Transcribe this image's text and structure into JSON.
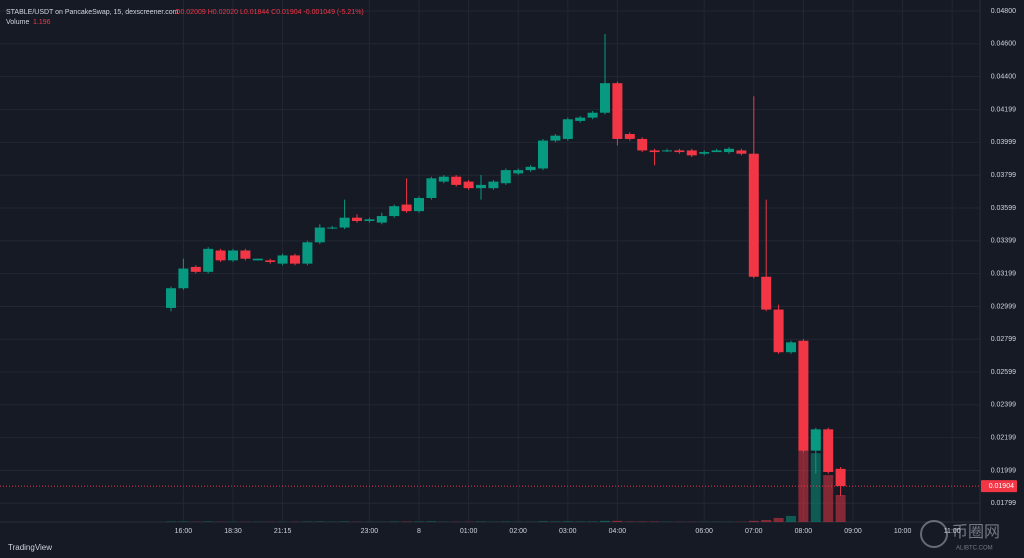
{
  "chart_data": {
    "type": "candlestick",
    "title": "STABLE/USDT on PancakeSwap, 15, dexscreener.com",
    "ohlc_text": "O0.02009 H0.02020 L0.01844 C0.01904 -0.001049 (-5.21%)",
    "volume_title": "Volume",
    "volume_text": "1.196",
    "up_color": "#089981",
    "down_color": "#f23645",
    "grid": true,
    "ylim": [
      0.01685,
      0.04867
    ],
    "yticks": [
      {
        "value": 0.048,
        "label": "0.04800"
      },
      {
        "value": 0.046,
        "label": "0.04600"
      },
      {
        "value": 0.044,
        "label": "0.04400"
      },
      0.04199,
      0.03999,
      0.03799,
      0.03599,
      0.03399,
      0.03199,
      0.02999,
      0.02799,
      0.02599,
      0.02399,
      0.02199,
      0.01999,
      0.01799
    ],
    "last_price": {
      "value": 0.01904,
      "label": "0.01904"
    },
    "categories": [
      null,
      "16:00",
      null,
      null,
      null,
      "18:30",
      null,
      null,
      null,
      "21:15",
      null,
      null,
      null,
      null,
      null,
      null,
      "23:00",
      null,
      null,
      null,
      "8",
      null,
      null,
      null,
      "01:00",
      null,
      null,
      null,
      "02:00",
      null,
      null,
      null,
      "03:00",
      null,
      null,
      null,
      "04:00",
      null,
      null,
      null,
      null,
      null,
      null,
      "06:00",
      null,
      null,
      null,
      "07:00",
      null,
      null,
      null,
      "08:00",
      null,
      null,
      null,
      "09:00",
      null,
      null,
      null,
      "10:00",
      null,
      null,
      null,
      "11:00"
    ],
    "open": [
      0.0299,
      0.0311,
      0.0324,
      0.0321,
      0.0334,
      0.0328,
      0.0334,
      0.0328,
      0.0328,
      0.0326,
      0.0331,
      0.0326,
      0.0339,
      0.0348,
      0.0348,
      0.0354,
      0.0352,
      0.0351,
      0.0355,
      0.0362,
      0.0358,
      0.0366,
      0.0376,
      0.0379,
      0.0376,
      0.0372,
      0.0372,
      0.0375,
      0.0381,
      0.0383,
      0.0384,
      0.0401,
      0.0402,
      0.0413,
      0.0415,
      0.0418,
      0.0436,
      0.0405,
      0.0402,
      0.0395,
      0.0395,
      0.0395,
      0.0395,
      0.0393,
      0.0394,
      0.0394,
      0.0395,
      0.0393,
      0.0318,
      0.0298,
      0.0272,
      0.0279,
      0.0212,
      0.0225,
      0.02009,
      null,
      null,
      null,
      null,
      null,
      null,
      null,
      null,
      null
    ],
    "high": [
      0.0312,
      0.0329,
      0.0325,
      0.0336,
      0.0335,
      0.0335,
      0.0335,
      0.0329,
      0.0329,
      0.0332,
      0.0332,
      0.034,
      0.035,
      0.0349,
      0.0365,
      0.0356,
      0.0354,
      0.0357,
      0.0362,
      0.0378,
      0.0367,
      0.0379,
      0.038,
      0.038,
      0.0377,
      0.038,
      0.0377,
      0.0384,
      0.0384,
      0.0386,
      0.0402,
      0.0405,
      0.0415,
      0.0416,
      0.0419,
      0.0466,
      0.0437,
      0.0406,
      0.0403,
      0.0396,
      0.0396,
      0.0396,
      0.0396,
      0.0395,
      0.0396,
      0.0397,
      0.0396,
      0.0428,
      0.0365,
      0.0301,
      0.0279,
      0.028,
      0.0226,
      0.0226,
      0.0202,
      null,
      null,
      null,
      null,
      null,
      null,
      null,
      null,
      null
    ],
    "low": [
      0.0297,
      0.031,
      0.032,
      0.032,
      0.0327,
      0.0327,
      0.0328,
      0.0328,
      0.0326,
      0.0325,
      0.0325,
      0.0325,
      0.0338,
      0.0347,
      0.0347,
      0.0351,
      0.0351,
      0.035,
      0.0354,
      0.0357,
      0.0357,
      0.0365,
      0.0375,
      0.0373,
      0.0371,
      0.0365,
      0.0371,
      0.0374,
      0.038,
      0.0382,
      0.0383,
      0.04,
      0.0401,
      0.0412,
      0.0414,
      0.0417,
      0.0398,
      0.0401,
      0.0394,
      0.0386,
      0.0394,
      0.0393,
      0.0391,
      0.0392,
      0.0394,
      0.0393,
      0.0392,
      0.0317,
      0.0297,
      0.0271,
      0.0271,
      0.0211,
      0.0198,
      0.0198,
      0.01844,
      null,
      null,
      null,
      null,
      null,
      null,
      null,
      null,
      null
    ],
    "close": [
      0.0311,
      0.0323,
      0.0321,
      0.0335,
      0.0328,
      0.0334,
      0.0329,
      0.0329,
      0.0327,
      0.0331,
      0.0326,
      0.0339,
      0.0348,
      0.0348,
      0.0354,
      0.0352,
      0.0353,
      0.0355,
      0.0361,
      0.0358,
      0.0366,
      0.0378,
      0.0379,
      0.0374,
      0.0372,
      0.0374,
      0.0376,
      0.0383,
      0.0383,
      0.0385,
      0.0401,
      0.0404,
      0.0414,
      0.0415,
      0.0418,
      0.0436,
      0.0402,
      0.0402,
      0.0395,
      0.0394,
      0.0395,
      0.0394,
      0.0392,
      0.0394,
      0.0395,
      0.0396,
      0.0393,
      0.0318,
      0.0298,
      0.0272,
      0.0278,
      0.0212,
      0.0225,
      0.0199,
      0.01904,
      null,
      null,
      null,
      null,
      null,
      null,
      null,
      null,
      null
    ],
    "volume": [
      0.02,
      0.02,
      0.01,
      0.02,
      0.01,
      0.01,
      0.01,
      0.01,
      0.01,
      0.01,
      0.01,
      0.02,
      0.02,
      0.01,
      0.02,
      0.01,
      0.01,
      0.01,
      0.02,
      0.02,
      0.02,
      0.03,
      0.01,
      0.01,
      0.01,
      0.02,
      0.01,
      0.02,
      0.01,
      0.01,
      0.03,
      0.02,
      0.03,
      0.02,
      0.02,
      0.05,
      0.05,
      0.02,
      0.02,
      0.02,
      0.01,
      0.01,
      0.01,
      0.01,
      0.01,
      0.01,
      0.01,
      0.05,
      0.09,
      0.18,
      0.27,
      3.19,
      3.05,
      2.08,
      1.196,
      null,
      null,
      null,
      null,
      null,
      null,
      null,
      null,
      null
    ],
    "branding": "TradingView",
    "watermark": "币圈网",
    "watermark_sub": "ALIBTC.COM"
  }
}
